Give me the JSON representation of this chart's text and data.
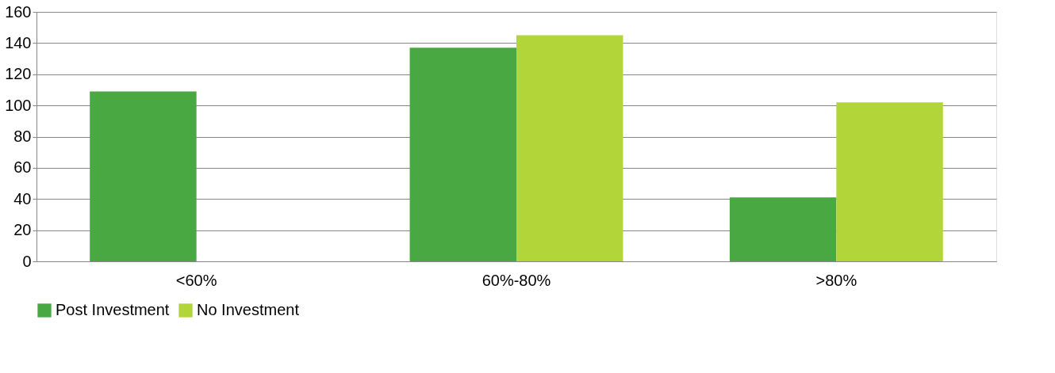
{
  "chart_data": {
    "type": "bar",
    "categories": [
      "<60%",
      "60%-80%",
      ">80%"
    ],
    "series": [
      {
        "name": "Post Investment",
        "color": "#4aa842",
        "values": [
          109,
          137,
          41
        ]
      },
      {
        "name": "No Investment",
        "color": "#b2d63a",
        "values": [
          null,
          145,
          102
        ]
      }
    ],
    "ylim": [
      0,
      160
    ],
    "yticks": [
      0,
      20,
      40,
      60,
      80,
      100,
      120,
      140,
      160
    ],
    "grid": "y",
    "legend": "bottom"
  }
}
